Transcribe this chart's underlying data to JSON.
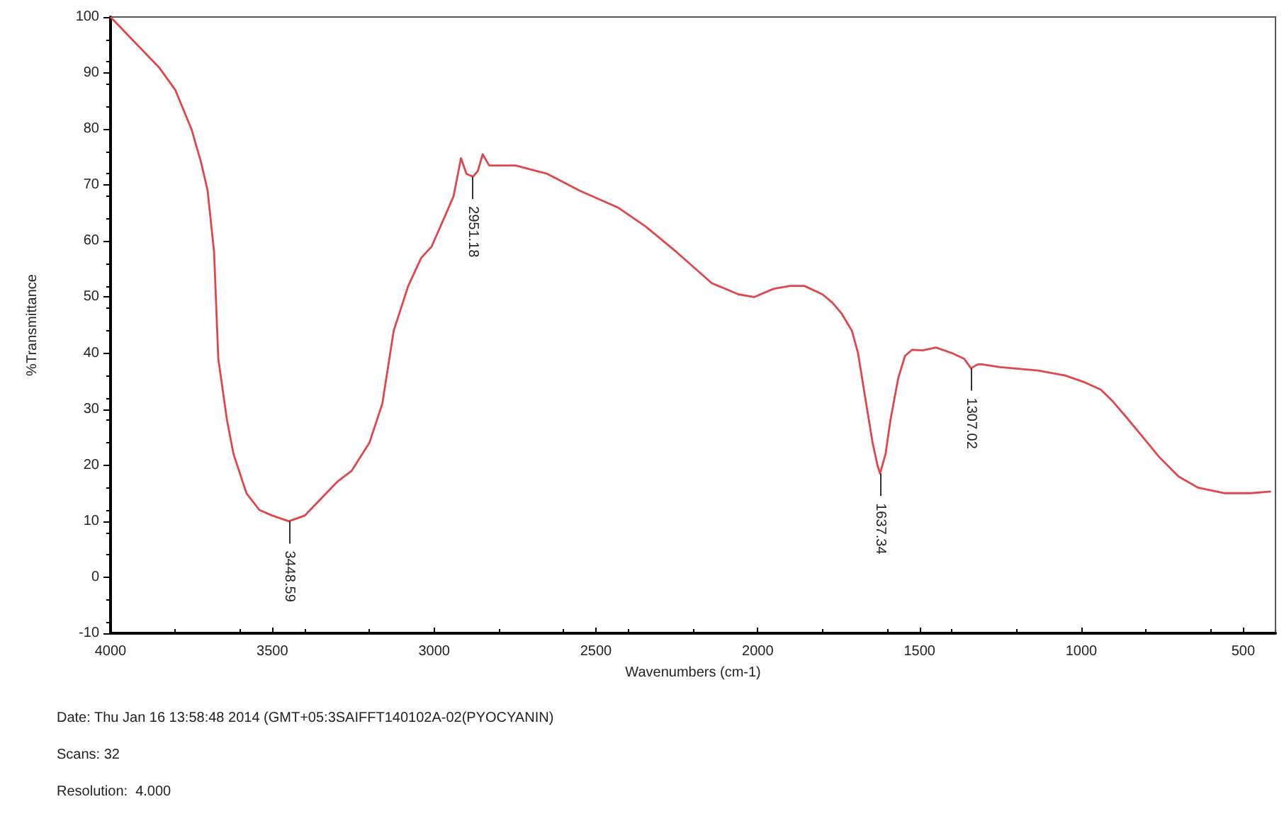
{
  "chart_data": {
    "type": "line",
    "xlabel": "Wavenumbers (cm-1)",
    "ylabel": "%Transmittance",
    "x": [
      4000,
      3950,
      3900,
      3850,
      3800,
      3750,
      3720,
      3700,
      3680,
      3667,
      3640,
      3620,
      3580,
      3540,
      3500,
      3449,
      3400,
      3350,
      3300,
      3255,
      3200,
      3160,
      3125,
      3080,
      3040,
      3008,
      2970,
      2940,
      2917,
      2900,
      2880,
      2865,
      2850,
      2830,
      2800,
      2748,
      2650,
      2550,
      2432,
      2346,
      2250,
      2142,
      2060,
      2012,
      1950,
      1900,
      1856,
      1800,
      1769,
      1740,
      1709,
      1690,
      1666,
      1645,
      1630,
      1622,
      1605,
      1590,
      1566,
      1545,
      1523,
      1490,
      1449,
      1400,
      1362,
      1341,
      1320,
      1307,
      1250,
      1133,
      1050,
      990,
      940,
      903,
      860,
      817,
      760,
      700,
      640,
      557,
      480,
      414
    ],
    "series": [
      {
        "color": "#e0474c",
        "values": [
          100,
          97,
          94,
          91,
          87,
          80,
          74,
          69,
          58,
          39,
          28,
          22,
          15,
          12,
          11,
          10,
          11,
          14,
          17,
          19,
          24,
          31,
          44,
          52,
          57,
          59,
          64,
          68,
          74.8,
          72,
          71.5,
          72.5,
          75.5,
          73.5,
          73.5,
          73.5,
          72,
          69,
          66,
          62.6,
          58,
          52.5,
          50.5,
          50,
          51.5,
          52,
          52,
          50.5,
          49,
          47,
          44,
          40,
          31.4,
          24,
          20,
          18.5,
          22,
          28,
          35.5,
          39.5,
          40.6,
          40.5,
          41,
          40,
          39,
          37.3,
          38,
          38,
          37.5,
          36.9,
          36,
          34.8,
          33.5,
          31.4,
          28.5,
          25.5,
          21.5,
          18,
          16,
          15,
          15,
          15.3
        ]
      }
    ],
    "xlim": [
      4000,
      400
    ],
    "xticks": [
      4000,
      3500,
      3000,
      2500,
      2000,
      1500,
      1000,
      500
    ],
    "ylim": [
      -10,
      100
    ],
    "yticks": [
      -10,
      0,
      10,
      20,
      30,
      40,
      50,
      60,
      70,
      80,
      90,
      100
    ],
    "grid": false,
    "marker": "none",
    "line_style": "solid",
    "annotations": [
      {
        "text": "3448.59",
        "x": 3449,
        "y": 10
      },
      {
        "text": "2951.18",
        "x": 2880,
        "y": 71.5
      },
      {
        "text": "1637.34",
        "x": 1622,
        "y": 18.5
      },
      {
        "text": "1307.02",
        "x": 1341,
        "y": 37.3
      },
      "Date: Thu Jan 16 13:58:48 2014 (GMT+05:3SAIFFT140102A-02(PYOCYANIN)",
      "Scans: 32",
      "Resolution:  4.000"
    ]
  }
}
